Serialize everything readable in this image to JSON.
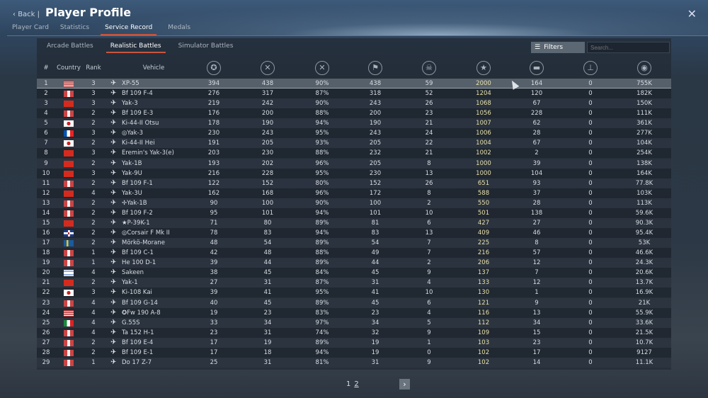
{
  "header": {
    "back_label": "Back",
    "separator": "|",
    "title": "Player Profile"
  },
  "tabs": [
    {
      "label": "Player Card"
    },
    {
      "label": "Statistics"
    },
    {
      "label": "Service Record",
      "active": true
    },
    {
      "label": "Medals"
    }
  ],
  "mode_tabs": [
    {
      "label": "Arcade Battles"
    },
    {
      "label": "Realistic Battles",
      "active": true
    },
    {
      "label": "Simulator Battles"
    }
  ],
  "filters_label": "Filters",
  "search_placeholder": "Search...",
  "columns": {
    "num": "#",
    "country": "Country",
    "rank": "Rank",
    "vehicle": "Vehicle",
    "icons": [
      "victories-icon",
      "respawns-icon",
      "victory-ratio-icon",
      "sessions-icon",
      "deaths-icon",
      "air-kills-icon",
      "ground-kills-icon",
      "naval-kills-icon",
      "activity-icon"
    ]
  },
  "colors": {
    "accent": "#c8553d",
    "gold_value": "#e8e0a8",
    "selected_row": "#56606b"
  },
  "rows": [
    [
      "1",
      "us",
      "3",
      "XP-55",
      "394",
      "438",
      "90%",
      "438",
      "59",
      "2000",
      "164",
      "0",
      "755K"
    ],
    [
      "2",
      "de",
      "3",
      "Bf 109 F-4",
      "276",
      "317",
      "87%",
      "318",
      "52",
      "1204",
      "120",
      "0",
      "182K"
    ],
    [
      "3",
      "su",
      "3",
      "Yak-3",
      "219",
      "242",
      "90%",
      "243",
      "26",
      "1068",
      "67",
      "0",
      "150K"
    ],
    [
      "4",
      "de",
      "2",
      "Bf 109 E-3",
      "176",
      "200",
      "88%",
      "200",
      "23",
      "1056",
      "228",
      "0",
      "111K"
    ],
    [
      "5",
      "jp",
      "2",
      "Ki-44-II Otsu",
      "178",
      "190",
      "94%",
      "190",
      "21",
      "1007",
      "62",
      "0",
      "361K"
    ],
    [
      "6",
      "fr",
      "3",
      "◎Yak-3",
      "230",
      "243",
      "95%",
      "243",
      "24",
      "1006",
      "28",
      "0",
      "277K"
    ],
    [
      "7",
      "jp",
      "2",
      "Ki-44-II Hei",
      "191",
      "205",
      "93%",
      "205",
      "22",
      "1004",
      "67",
      "0",
      "104K"
    ],
    [
      "8",
      "su",
      "3",
      "Eremin's Yak-3(e)",
      "203",
      "230",
      "88%",
      "232",
      "21",
      "1002",
      "2",
      "0",
      "254K"
    ],
    [
      "9",
      "su",
      "2",
      "Yak-1B",
      "193",
      "202",
      "96%",
      "205",
      "8",
      "1000",
      "39",
      "0",
      "138K"
    ],
    [
      "10",
      "su",
      "3",
      "Yak-9U",
      "216",
      "228",
      "95%",
      "230",
      "13",
      "1000",
      "104",
      "0",
      "164K"
    ],
    [
      "11",
      "de",
      "2",
      "Bf 109 F-1",
      "122",
      "152",
      "80%",
      "152",
      "26",
      "651",
      "93",
      "0",
      "77.8K"
    ],
    [
      "12",
      "su",
      "4",
      "Yak-3U",
      "162",
      "168",
      "96%",
      "172",
      "8",
      "588",
      "37",
      "0",
      "103K"
    ],
    [
      "13",
      "de",
      "2",
      "✢Yak-1B",
      "90",
      "100",
      "90%",
      "100",
      "2",
      "550",
      "28",
      "0",
      "113K"
    ],
    [
      "14",
      "de",
      "2",
      "Bf 109 F-2",
      "95",
      "101",
      "94%",
      "101",
      "10",
      "501",
      "138",
      "0",
      "59.6K"
    ],
    [
      "15",
      "su",
      "2",
      "★P-39K-1",
      "71",
      "80",
      "89%",
      "81",
      "6",
      "427",
      "27",
      "0",
      "90.3K"
    ],
    [
      "16",
      "uk",
      "2",
      "◎Corsair F Mk II",
      "78",
      "83",
      "94%",
      "83",
      "13",
      "409",
      "46",
      "0",
      "95.4K"
    ],
    [
      "17",
      "se",
      "2",
      "Mörkö-Morane",
      "48",
      "54",
      "89%",
      "54",
      "7",
      "225",
      "8",
      "0",
      "53K"
    ],
    [
      "18",
      "de",
      "1",
      "Bf 109 C-1",
      "42",
      "48",
      "88%",
      "49",
      "7",
      "216",
      "57",
      "0",
      "46.6K"
    ],
    [
      "19",
      "de",
      "1",
      "He 100 D-1",
      "39",
      "44",
      "89%",
      "44",
      "2",
      "206",
      "12",
      "0",
      "24.3K"
    ],
    [
      "20",
      "il",
      "4",
      "Sakeen",
      "38",
      "45",
      "84%",
      "45",
      "9",
      "137",
      "7",
      "0",
      "20.6K"
    ],
    [
      "21",
      "su",
      "2",
      "Yak-1",
      "27",
      "31",
      "87%",
      "31",
      "4",
      "133",
      "12",
      "0",
      "13.7K"
    ],
    [
      "22",
      "jp",
      "3",
      "Ki-108 Kai",
      "39",
      "41",
      "95%",
      "41",
      "10",
      "130",
      "1",
      "0",
      "16.9K"
    ],
    [
      "23",
      "de",
      "4",
      "Bf 109 G-14",
      "40",
      "45",
      "89%",
      "45",
      "6",
      "121",
      "9",
      "0",
      "21K"
    ],
    [
      "24",
      "us",
      "4",
      "✪Fw 190 A-8",
      "19",
      "23",
      "83%",
      "23",
      "4",
      "116",
      "13",
      "0",
      "55.9K"
    ],
    [
      "25",
      "it",
      "4",
      "G.55S",
      "33",
      "34",
      "97%",
      "34",
      "5",
      "112",
      "34",
      "0",
      "33.6K"
    ],
    [
      "26",
      "de",
      "4",
      "Ta 152 H-1",
      "23",
      "31",
      "74%",
      "32",
      "9",
      "109",
      "15",
      "0",
      "21.5K"
    ],
    [
      "27",
      "de",
      "2",
      "Bf 109 E-4",
      "17",
      "19",
      "89%",
      "19",
      "1",
      "103",
      "23",
      "0",
      "10.7K"
    ],
    [
      "28",
      "de",
      "2",
      "Bf 109 E-1",
      "17",
      "18",
      "94%",
      "19",
      "0",
      "102",
      "17",
      "0",
      "9127"
    ],
    [
      "29",
      "de",
      "1",
      "Do 17 Z-7",
      "25",
      "31",
      "81%",
      "31",
      "9",
      "102",
      "14",
      "0",
      "11.1K"
    ]
  ],
  "pagination": {
    "pages": [
      "1",
      "2"
    ],
    "current": "1",
    "next_label": "›"
  },
  "close_label": "✕"
}
